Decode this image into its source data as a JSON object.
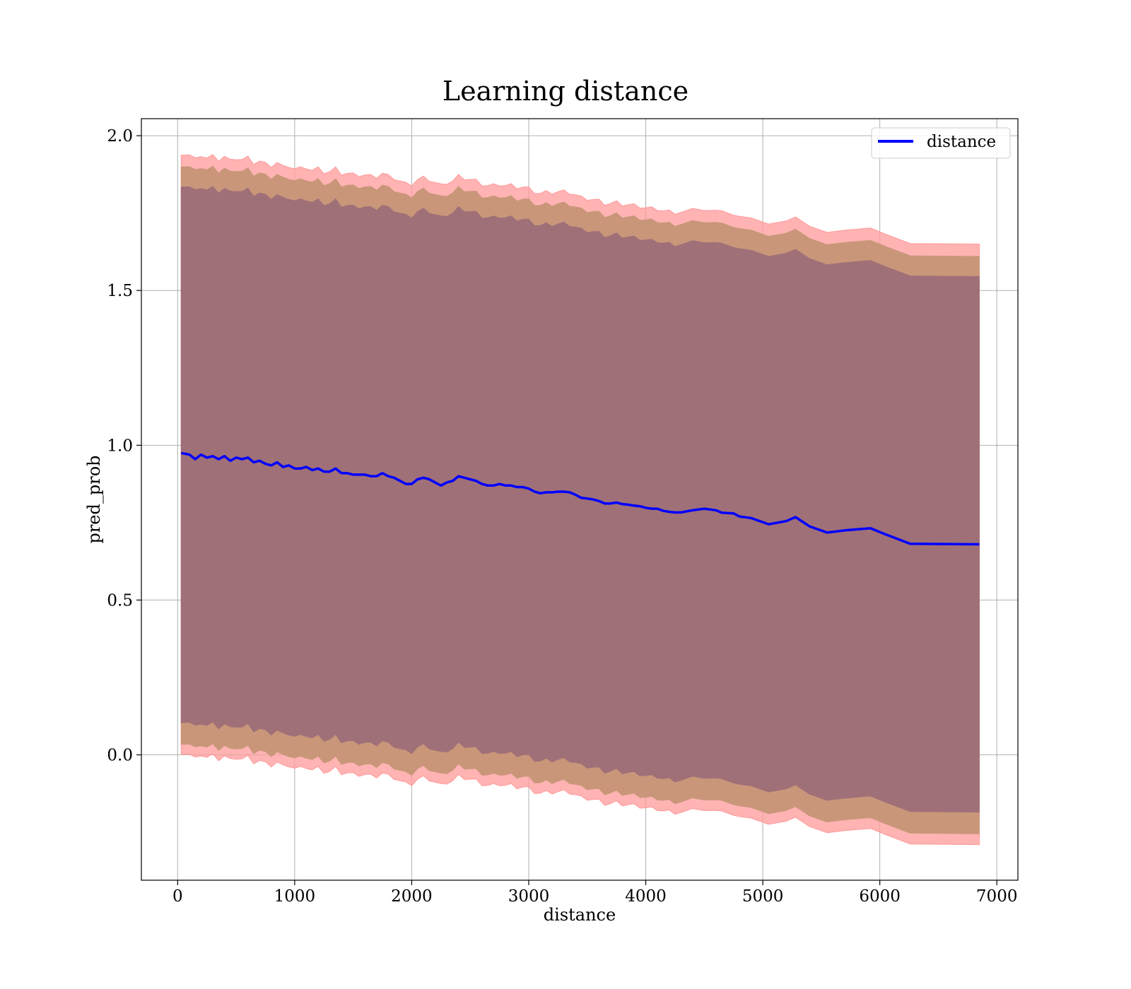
{
  "chart_data": {
    "type": "line",
    "title": "Learning distance",
    "xlabel": "distance",
    "ylabel": "pred_prob",
    "xlim": [
      -310,
      7180
    ],
    "ylim": [
      -0.405,
      2.055
    ],
    "xticks": [
      0,
      1000,
      2000,
      3000,
      4000,
      5000,
      6000,
      7000
    ],
    "yticks": [
      0.0,
      0.5,
      1.0,
      1.5,
      2.0
    ],
    "xtick_labels": [
      "0",
      "1000",
      "2000",
      "3000",
      "4000",
      "5000",
      "6000",
      "7000"
    ],
    "ytick_labels": [
      "0.0",
      "0.5",
      "1.0",
      "1.5",
      "2.0"
    ],
    "grid": true,
    "legend": {
      "position": "upper right",
      "entries": [
        "distance"
      ]
    },
    "colors": {
      "line": "#0000ff",
      "band_outer": "#ff9999",
      "band_middle": "#c9967a",
      "band_inner": "#a07078"
    },
    "series": [
      {
        "name": "distance",
        "x": [
          30,
          100,
          150,
          200,
          250,
          300,
          350,
          400,
          450,
          500,
          550,
          600,
          650,
          700,
          750,
          800,
          850,
          900,
          950,
          1000,
          1050,
          1100,
          1150,
          1200,
          1250,
          1300,
          1350,
          1400,
          1450,
          1500,
          1550,
          1600,
          1650,
          1700,
          1750,
          1800,
          1850,
          1900,
          1950,
          2000,
          2050,
          2100,
          2150,
          2200,
          2250,
          2300,
          2350,
          2400,
          2450,
          2500,
          2550,
          2600,
          2650,
          2700,
          2750,
          2800,
          2850,
          2900,
          2950,
          3000,
          3050,
          3100,
          3150,
          3200,
          3250,
          3300,
          3350,
          3400,
          3450,
          3500,
          3550,
          3600,
          3650,
          3700,
          3750,
          3800,
          3850,
          3900,
          3950,
          4000,
          4050,
          4100,
          4150,
          4200,
          4250,
          4300,
          4400,
          4500,
          4600,
          4650,
          4750,
          4800,
          4900,
          5050,
          5200,
          5280,
          5400,
          5550,
          5700,
          5920,
          6050,
          6260,
          6850
        ],
        "values": [
          0.975,
          0.97,
          0.955,
          0.97,
          0.96,
          0.965,
          0.955,
          0.965,
          0.95,
          0.96,
          0.955,
          0.96,
          0.945,
          0.95,
          0.94,
          0.935,
          0.945,
          0.93,
          0.935,
          0.925,
          0.925,
          0.93,
          0.92,
          0.925,
          0.915,
          0.915,
          0.925,
          0.91,
          0.91,
          0.905,
          0.905,
          0.905,
          0.9,
          0.9,
          0.91,
          0.9,
          0.895,
          0.885,
          0.875,
          0.875,
          0.89,
          0.895,
          0.89,
          0.88,
          0.87,
          0.88,
          0.885,
          0.9,
          0.895,
          0.89,
          0.885,
          0.875,
          0.87,
          0.87,
          0.875,
          0.87,
          0.87,
          0.865,
          0.865,
          0.86,
          0.85,
          0.845,
          0.848,
          0.848,
          0.85,
          0.85,
          0.848,
          0.84,
          0.83,
          0.828,
          0.825,
          0.82,
          0.812,
          0.812,
          0.815,
          0.81,
          0.808,
          0.805,
          0.803,
          0.798,
          0.795,
          0.795,
          0.788,
          0.785,
          0.783,
          0.783,
          0.79,
          0.795,
          0.79,
          0.782,
          0.78,
          0.77,
          0.765,
          0.745,
          0.755,
          0.768,
          0.738,
          0.718,
          0.725,
          0.732,
          0.712,
          0.682,
          0.68
        ]
      }
    ],
    "bands": [
      {
        "label": "outer",
        "offsets": {
          "start_upper": 0.968,
          "start_lower": 0.968,
          "end_upper": 0.97,
          "end_lower": 0.97
        }
      },
      {
        "label": "middle",
        "offsets": {
          "start_upper": 0.93,
          "start_lower": 0.935,
          "end_upper": 0.93,
          "end_lower": 0.935
        }
      },
      {
        "label": "inner",
        "offsets": {
          "start_upper": 0.865,
          "start_lower": 0.865,
          "end_upper": 0.865,
          "end_lower": 0.865
        }
      }
    ]
  }
}
